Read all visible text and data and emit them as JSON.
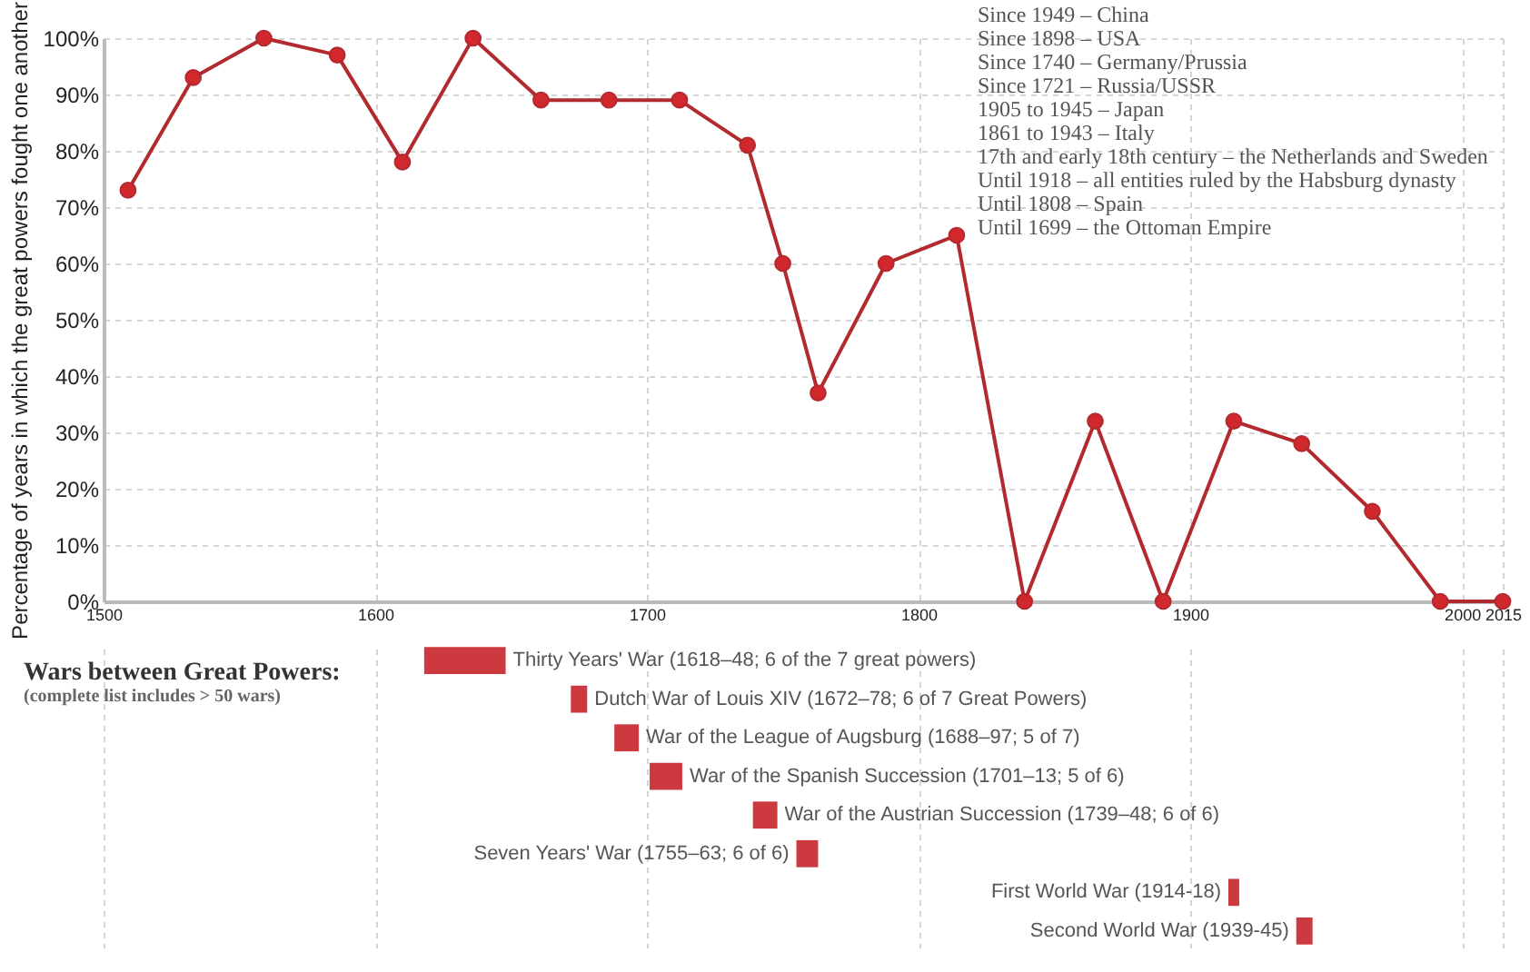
{
  "chart_data": [
    {
      "type": "line",
      "ylabel": "Percentage of years in which the great powers fought one another",
      "x": [
        1509,
        1533,
        1559,
        1586,
        1610,
        1636,
        1661,
        1686,
        1712,
        1737,
        1750,
        1763,
        1788,
        1814,
        1839,
        1865,
        1890,
        1916,
        1941,
        1967,
        1992,
        2015
      ],
      "series": [
        {
          "color": "#b22a2e",
          "values": [
            73,
            93,
            100,
            97,
            78,
            100,
            89,
            89,
            89,
            81,
            60,
            37,
            60,
            65,
            0,
            32,
            0,
            32,
            28,
            16,
            0,
            0
          ]
        }
      ],
      "xlim": [
        1500,
        2015
      ],
      "xticks": [
        1500,
        1600,
        1700,
        1800,
        1900,
        2000,
        2015
      ],
      "ylim": [
        0,
        100
      ],
      "yticks": [
        {
          "value": 0,
          "label": "0%"
        },
        {
          "value": 10,
          "label": "10%"
        },
        {
          "value": 20,
          "label": "20%"
        },
        {
          "value": 30,
          "label": "30%"
        },
        {
          "value": 40,
          "label": "40%"
        },
        {
          "value": 50,
          "label": "50%"
        },
        {
          "value": 60,
          "label": "60%"
        },
        {
          "value": 70,
          "label": "70%"
        },
        {
          "value": 80,
          "label": "80%"
        },
        {
          "value": 90,
          "label": "90%"
        },
        {
          "value": 100,
          "label": "100%"
        }
      ],
      "grid": true,
      "marker": "circle",
      "line_style": "solid",
      "annotations": [
        "Since 1949 – China",
        "Since 1898 – USA",
        "Since 1740 – Germany/Prussia",
        "Since 1721 – Russia/USSR",
        "1905 to 1945 – Japan",
        "1861 to 1943 – Italy",
        "17th and early 18th century – the Netherlands and Sweden",
        "Until 1918 – all entities ruled by the Habsburg dynasty",
        "Until 1808 – Spain",
        "Until 1699 – the Ottoman Empire"
      ]
    },
    {
      "type": "bar",
      "orientation": "horizontal",
      "title": "Wars between Great Powers:",
      "subtitle": "(complete list includes > 50 wars)",
      "categories": [
        "Thirty Years' War (1618–48; 6 of the 7 great powers)",
        "Dutch War of Louis XIV (1672–78; 6 of 7 Great Powers)",
        "War of the League of Augsburg (1688–97; 5 of 7)",
        "War of the Spanish Succession (1701–13; 5 of 6)",
        "War of the Austrian Succession (1739–48; 6 of 6)",
        "Seven Years' War (1755–63; 6 of 6)",
        "First World War (1914-18)",
        "Second World War (1939-45)"
      ],
      "base": [
        1618,
        1672,
        1688,
        1701,
        1739,
        1755,
        1914,
        1939
      ],
      "values": [
        30,
        6,
        9,
        12,
        9,
        8,
        4,
        6
      ],
      "color": "#cc3a40",
      "xlim": [
        1500,
        2015
      ],
      "xticks": [
        1500,
        1600,
        1700,
        1800,
        1900,
        2000,
        2015
      ],
      "tick_labels": false,
      "grid": "x"
    }
  ]
}
